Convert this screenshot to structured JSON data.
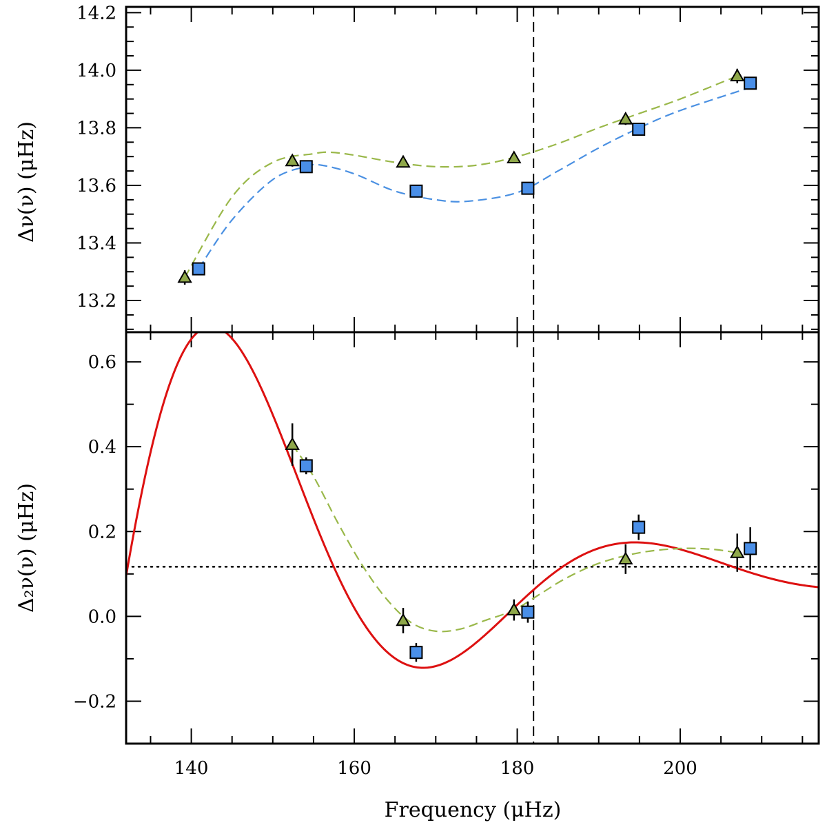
{
  "chart_data": [
    {
      "type": "scatter",
      "panel": "top",
      "ylabel": "Δν(ν) (μHz)",
      "xlabel": "",
      "xlim": [
        132,
        217
      ],
      "ylim": [
        13.09,
        14.22
      ],
      "yticks": [
        13.2,
        13.4,
        13.6,
        13.8,
        14.0,
        14.2
      ],
      "ytick_labels": [
        "13.2",
        "13.4",
        "13.6",
        "13.8",
        "14.0",
        "14.2"
      ],
      "xticks": [
        140,
        160,
        180,
        200
      ],
      "vline_x": 182,
      "colors": {
        "triangle": "#8fa84a",
        "square": "#4a8fe8",
        "triangle_fit": "#9ab84a",
        "square_fit": "#4a90e2"
      },
      "series": [
        {
          "name": "triangles",
          "marker": "triangle",
          "x": [
            139.2,
            152.4,
            166.0,
            179.6,
            193.3,
            207.0
          ],
          "y": [
            13.28,
            13.685,
            13.68,
            13.695,
            13.83,
            13.98
          ],
          "err": [
            0.025,
            0.02,
            0.012,
            0.012,
            0.02,
            0.025
          ]
        },
        {
          "name": "squares",
          "marker": "square",
          "x": [
            140.9,
            154.1,
            167.6,
            181.3,
            194.9,
            208.6
          ],
          "y": [
            13.31,
            13.665,
            13.58,
            13.59,
            13.795,
            13.955
          ],
          "err": [
            0.02,
            0.012,
            0.01,
            0.012,
            0.012,
            0.012
          ]
        },
        {
          "name": "triangle fit",
          "style": "dashed",
          "x": [
            139.2,
            145,
            150,
            155,
            157,
            160,
            165,
            170,
            175,
            180,
            185,
            190,
            195,
            200,
            207
          ],
          "y": [
            13.28,
            13.56,
            13.68,
            13.71,
            13.715,
            13.705,
            13.68,
            13.665,
            13.67,
            13.7,
            13.745,
            13.8,
            13.85,
            13.9,
            13.98
          ]
        },
        {
          "name": "square fit",
          "style": "dashed",
          "x": [
            140.9,
            145,
            150,
            154,
            156,
            160,
            165,
            170,
            174,
            180,
            185,
            190,
            195,
            200,
            208.6
          ],
          "y": [
            13.31,
            13.48,
            13.62,
            13.665,
            13.67,
            13.64,
            13.58,
            13.55,
            13.545,
            13.575,
            13.65,
            13.73,
            13.8,
            13.86,
            13.94
          ]
        }
      ]
    },
    {
      "type": "scatter",
      "panel": "bottom",
      "ylabel": "Δ₂ν(ν) (μHz)",
      "xlabel": "Frequency (μHz)",
      "xlim": [
        132,
        217
      ],
      "ylim": [
        -0.3,
        0.67
      ],
      "yticks": [
        -0.2,
        0.0,
        0.2,
        0.4,
        0.6
      ],
      "ytick_labels": [
        "−0.2",
        "0.0",
        "0.2",
        "0.4",
        "0.6"
      ],
      "xticks": [
        140,
        160,
        180,
        200
      ],
      "xtick_labels": [
        "140",
        "160",
        "180",
        "200"
      ],
      "vline_x": 182,
      "hline_y": 0.117,
      "colors": {
        "triangle": "#8fa84a",
        "square": "#4a8fe8",
        "fit": "#dd1111",
        "triangle_fit": "#9ab84a"
      },
      "series": [
        {
          "name": "triangles",
          "marker": "triangle",
          "x": [
            152.4,
            166.0,
            179.6,
            193.3,
            207.0
          ],
          "y": [
            0.405,
            -0.01,
            0.015,
            0.135,
            0.15
          ],
          "err": [
            0.05,
            0.03,
            0.025,
            0.035,
            0.045
          ]
        },
        {
          "name": "squares",
          "marker": "square",
          "x": [
            154.1,
            167.6,
            181.3,
            194.9,
            208.6
          ],
          "y": [
            0.355,
            -0.085,
            0.01,
            0.21,
            0.16
          ],
          "err": [
            0.02,
            0.022,
            0.025,
            0.03,
            0.05
          ]
        },
        {
          "name": "oscillation fit",
          "style": "solid",
          "model": {
            "offset": 0.046,
            "amplitude": 0.1605,
            "omega": 0.2403,
            "phase": -0.31,
            "decay": 0.0275
          }
        },
        {
          "name": "triangle fit",
          "style": "dashed",
          "x": [
            152.4,
            155,
            158,
            161,
            164,
            167,
            170,
            173,
            176,
            179.6,
            183,
            186,
            190,
            195,
            200,
            204,
            207
          ],
          "y": [
            0.405,
            0.33,
            0.22,
            0.12,
            0.04,
            -0.015,
            -0.035,
            -0.03,
            -0.01,
            0.015,
            0.055,
            0.09,
            0.125,
            0.15,
            0.16,
            0.158,
            0.15
          ]
        }
      ]
    }
  ]
}
